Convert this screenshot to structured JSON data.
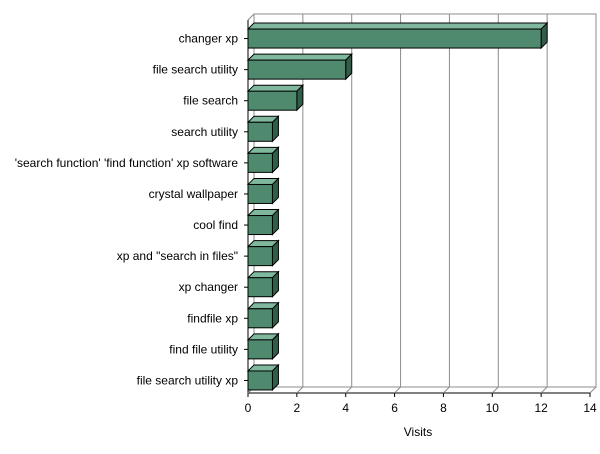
{
  "chart_data": {
    "type": "bar",
    "orientation": "horizontal",
    "categories": [
      "changer xp",
      "file search utility",
      "file search",
      "search utility",
      "'search function' 'find function' xp software",
      "crystal wallpaper",
      "cool find",
      "xp and \"search in files\"",
      "xp changer",
      "findfile xp",
      "find file utility",
      "file search utility xp"
    ],
    "values": [
      12,
      4,
      2,
      1,
      1,
      1,
      1,
      1,
      1,
      1,
      1,
      1
    ],
    "xlabel": "Visits",
    "xlim": [
      0,
      14
    ],
    "xticks": [
      "0",
      "2",
      "4",
      "6",
      "8",
      "10",
      "12",
      "14"
    ],
    "grid": true,
    "style": "3d",
    "colors": {
      "bar_front": "#4f8a6f",
      "bar_top": "#7fb89c",
      "bar_side": "#2f5f48",
      "grid": "#8c8c8c"
    }
  }
}
